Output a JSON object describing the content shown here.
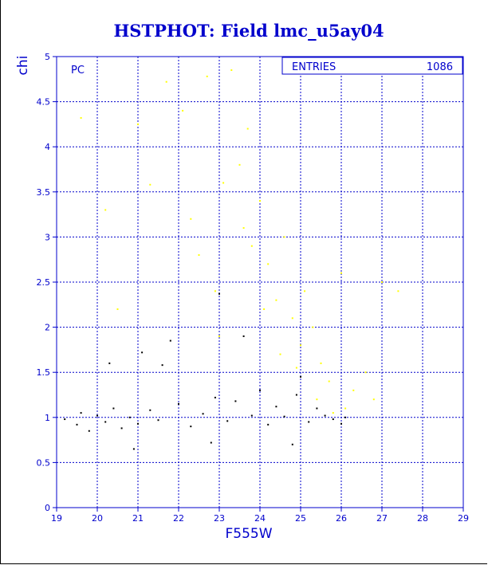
{
  "chart_data": {
    "type": "scatter",
    "title": "HSTPHOT: Field lmc_u5ay04",
    "xlabel": "F555W",
    "ylabel": "chi",
    "xlim": [
      19,
      29
    ],
    "ylim": [
      0,
      5
    ],
    "xticks": [
      "19",
      "20",
      "21",
      "22",
      "23",
      "24",
      "25",
      "26",
      "27",
      "28",
      "29"
    ],
    "yticks": [
      "0",
      "0.5",
      "1",
      "1.5",
      "2",
      "2.5",
      "3",
      "3.5",
      "4",
      "4.5",
      "5"
    ],
    "panel_label": "PC",
    "stats_box": {
      "label": "ENTRIES",
      "value": "1086"
    },
    "grid": true,
    "colors": {
      "title": "#0000cc",
      "axis": "#0000cc",
      "grid": "#0000cc",
      "series_black": "#000000",
      "series_yellow": "#ffff00"
    },
    "series": [
      {
        "color": "#000000",
        "points": [
          [
            19.2,
            0.98
          ],
          [
            19.5,
            0.92
          ],
          [
            19.6,
            1.05
          ],
          [
            19.8,
            0.85
          ],
          [
            20.0,
            1.02
          ],
          [
            20.2,
            0.95
          ],
          [
            20.4,
            1.1
          ],
          [
            20.6,
            0.88
          ],
          [
            20.8,
            1.0
          ],
          [
            21.0,
            0.93
          ],
          [
            21.1,
            1.72
          ],
          [
            21.3,
            1.08
          ],
          [
            21.5,
            0.97
          ],
          [
            21.8,
            1.85
          ],
          [
            22.0,
            1.15
          ],
          [
            22.3,
            0.9
          ],
          [
            22.6,
            1.04
          ],
          [
            22.9,
            1.22
          ],
          [
            23.0,
            2.37
          ],
          [
            23.2,
            0.96
          ],
          [
            23.4,
            1.18
          ],
          [
            23.6,
            1.9
          ],
          [
            23.8,
            1.02
          ],
          [
            24.0,
            1.3
          ],
          [
            24.2,
            0.92
          ],
          [
            24.4,
            1.12
          ],
          [
            24.6,
            1.01
          ],
          [
            24.9,
            1.25
          ],
          [
            25.0,
            1.45
          ],
          [
            25.2,
            0.95
          ],
          [
            25.4,
            1.1
          ],
          [
            25.6,
            1.02
          ],
          [
            25.8,
            0.98
          ],
          [
            26.0,
            0.93
          ],
          [
            26.1,
            1.0
          ],
          [
            20.3,
            1.6
          ],
          [
            21.6,
            1.58
          ],
          [
            22.8,
            0.72
          ],
          [
            20.9,
            0.65
          ],
          [
            24.8,
            0.7
          ]
        ]
      },
      {
        "color": "#ffff00",
        "points": [
          [
            19.6,
            4.32
          ],
          [
            20.2,
            3.3
          ],
          [
            20.5,
            2.2
          ],
          [
            21.0,
            4.25
          ],
          [
            21.3,
            3.58
          ],
          [
            21.7,
            4.72
          ],
          [
            22.1,
            4.4
          ],
          [
            22.3,
            3.2
          ],
          [
            22.7,
            4.78
          ],
          [
            22.9,
            2.4
          ],
          [
            23.1,
            3.6
          ],
          [
            23.3,
            4.85
          ],
          [
            23.5,
            3.8
          ],
          [
            23.7,
            4.2
          ],
          [
            23.8,
            2.9
          ],
          [
            24.0,
            3.4
          ],
          [
            24.2,
            2.7
          ],
          [
            24.4,
            2.3
          ],
          [
            24.6,
            3.0
          ],
          [
            24.8,
            2.1
          ],
          [
            25.0,
            1.8
          ],
          [
            25.3,
            2.0
          ],
          [
            25.5,
            1.6
          ],
          [
            25.7,
            1.4
          ],
          [
            26.0,
            2.6
          ],
          [
            26.3,
            1.3
          ],
          [
            26.6,
            1.5
          ],
          [
            27.0,
            2.5
          ],
          [
            27.4,
            2.4
          ],
          [
            26.8,
            1.2
          ],
          [
            24.5,
            1.7
          ],
          [
            25.1,
            2.4
          ],
          [
            23.6,
            3.1
          ],
          [
            24.1,
            2.2
          ],
          [
            25.8,
            1.05
          ],
          [
            26.1,
            1.1
          ],
          [
            22.5,
            2.8
          ],
          [
            23.0,
            1.9
          ],
          [
            24.9,
            1.55
          ],
          [
            25.4,
            1.2
          ]
        ]
      }
    ]
  }
}
